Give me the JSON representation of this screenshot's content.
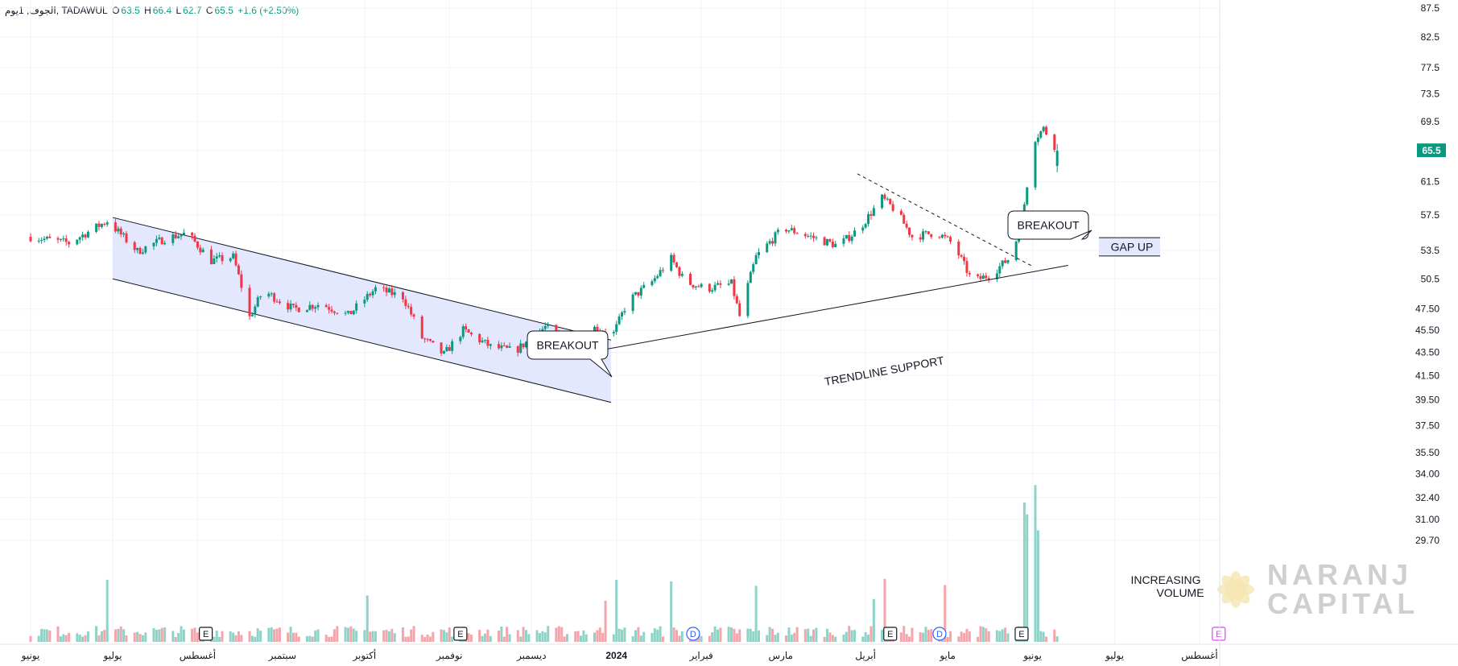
{
  "legend": {
    "symbol": "الجوف, 1يوم, TADAWUL",
    "open_label": "O",
    "open": "63.5",
    "high_label": "H",
    "high": "66.4",
    "low_label": "L",
    "low": "62.7",
    "close_label": "C",
    "close": "65.5",
    "change": "+1.6 (+2.50%)"
  },
  "last_price_badge": "65.5",
  "colors": {
    "up": "#089981",
    "down": "#f23645",
    "vol_up": "#8fd3c8",
    "vol_down": "#f5a5a9",
    "channel_fill": "#e3e8ff",
    "badge": "#089981",
    "grid": "#f0f3fa",
    "axis": "#e0e3eb"
  },
  "chart_data": {
    "type": "candlestick",
    "symbol": "TADAWUL",
    "interval": "1D",
    "y_axis_ticks": [
      "87.5",
      "82.5",
      "77.5",
      "73.5",
      "69.5",
      "65.5",
      "61.5",
      "57.5",
      "53.5",
      "50.5",
      "47.50",
      "45.50",
      "43.50",
      "41.50",
      "39.50",
      "37.50",
      "35.50",
      "34.00",
      "32.40",
      "31.00",
      "29.70"
    ],
    "y_axis_scale": "log",
    "x_axis_ticks": [
      "يونيو",
      "يوليو",
      "أغسطس",
      "سبتمبر",
      "أكتوبر",
      "نوفمبر",
      "ديسمبر",
      "2024",
      "فبراير",
      "مارس",
      "أبريل",
      "مايو",
      "يونيو",
      "يوليو",
      "أغسطس"
    ],
    "x_axis_tick_dates": [
      "2023-06-01",
      "2023-07-01",
      "2023-08-01",
      "2023-09-01",
      "2023-10-01",
      "2023-11-01",
      "2023-12-01",
      "2024-01-01",
      "2024-02-01",
      "2024-03-01",
      "2024-04-01",
      "2024-05-01",
      "2024-06-01",
      "2024-07-01",
      "2024-08-01"
    ],
    "price_anchors": [
      [
        "2023-06-01",
        55.0
      ],
      [
        "2023-06-15",
        54.3
      ],
      [
        "2023-06-29",
        56.8
      ],
      [
        "2023-07-10",
        53.4
      ],
      [
        "2023-07-20",
        54.8
      ],
      [
        "2023-07-28",
        55.4
      ],
      [
        "2023-08-06",
        52.4
      ],
      [
        "2023-08-14",
        52.8
      ],
      [
        "2023-08-20",
        46.7
      ],
      [
        "2023-08-25",
        49.3
      ],
      [
        "2023-09-05",
        47.5
      ],
      [
        "2023-09-15",
        48.0
      ],
      [
        "2023-09-25",
        46.9
      ],
      [
        "2023-10-05",
        49.5
      ],
      [
        "2023-10-15",
        48.7
      ],
      [
        "2023-10-22",
        44.8
      ],
      [
        "2023-10-30",
        43.3
      ],
      [
        "2023-11-06",
        45.5
      ],
      [
        "2023-11-16",
        44.0
      ],
      [
        "2023-11-25",
        43.6
      ],
      [
        "2023-12-06",
        45.8
      ],
      [
        "2023-12-18",
        43.6
      ],
      [
        "2023-12-24",
        45.7
      ],
      [
        "2023-12-31",
        45.2
      ],
      [
        "2024-01-05",
        48.2
      ],
      [
        "2024-01-14",
        50.2
      ],
      [
        "2024-01-21",
        52.6
      ],
      [
        "2024-01-26",
        50.2
      ],
      [
        "2024-02-03",
        49.5
      ],
      [
        "2024-02-12",
        50.0
      ],
      [
        "2024-02-15",
        46.8
      ],
      [
        "2024-02-21",
        52.8
      ],
      [
        "2024-03-02",
        56.0
      ],
      [
        "2024-03-12",
        55.0
      ],
      [
        "2024-03-22",
        54.0
      ],
      [
        "2024-03-30",
        56.0
      ],
      [
        "2024-04-07",
        59.5
      ],
      [
        "2024-04-12",
        58.0
      ],
      [
        "2024-04-18",
        55.0
      ],
      [
        "2024-04-27",
        55.5
      ],
      [
        "2024-05-03",
        54.2
      ],
      [
        "2024-05-10",
        50.2
      ],
      [
        "2024-05-17",
        51.0
      ],
      [
        "2024-05-24",
        52.8
      ],
      [
        "2024-05-28",
        56.4
      ],
      [
        "2024-05-30",
        61.2
      ],
      [
        "2024-06-01",
        66.8
      ],
      [
        "2024-06-05",
        68.5
      ],
      [
        "2024-06-09",
        66.2
      ],
      [
        "2024-06-11",
        65.5
      ]
    ],
    "volume_spike_dates": [
      "2023-06-29",
      "2023-10-02",
      "2023-12-28",
      "2024-01-01",
      "2024-01-21",
      "2024-02-21",
      "2024-04-04",
      "2024-04-08",
      "2024-04-30",
      "2024-05-29",
      "2024-05-30",
      "2024-05-31",
      "2024-06-01",
      "2024-06-03"
    ],
    "event_markers": [
      {
        "date": "2023-08-04",
        "label": "E"
      },
      {
        "date": "2023-11-05",
        "label": "E"
      },
      {
        "date": "2024-01-29",
        "label": "D"
      },
      {
        "date": "2024-04-10",
        "label": "E"
      },
      {
        "date": "2024-04-28",
        "label": "D"
      },
      {
        "date": "2024-05-28",
        "label": "E"
      },
      {
        "date": "2024-08-08",
        "label": "E"
      }
    ],
    "annotations": {
      "breakout_1": "BREAKOUT",
      "breakout_2": "BREAKOUT",
      "gap_up": "GAP UP",
      "trendline_support": "TRENDLINE SUPPORT",
      "increasing_volume_line1": "INCREASING",
      "increasing_volume_line2": "VOLUME"
    }
  },
  "watermark": {
    "line1": "NARANJ",
    "line2": "CAPITAL"
  }
}
